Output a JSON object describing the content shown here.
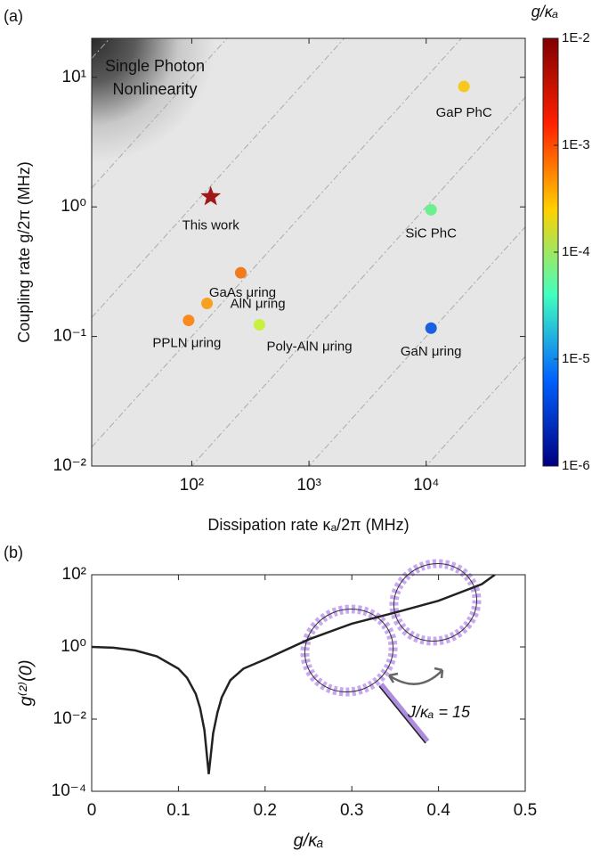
{
  "chart_data": [
    {
      "type": "scatter",
      "panel": "(a)",
      "xlabel": "Dissipation rate κₐ/2π (MHz)",
      "ylabel": "Coupling rate g/2π (MHz)",
      "xscale": "log",
      "yscale": "log",
      "xlim": [
        14,
        70000
      ],
      "ylim": [
        0.01,
        20
      ],
      "xticks": [
        {
          "value": 100,
          "label": "10²"
        },
        {
          "value": 1000,
          "label": "10³"
        },
        {
          "value": 10000,
          "label": "10⁴"
        }
      ],
      "yticks": [
        {
          "value": 0.01,
          "label": "10⁻²"
        },
        {
          "value": 0.1,
          "label": "10⁻¹"
        },
        {
          "value": 1,
          "label": "10⁰"
        },
        {
          "value": 10,
          "label": "10¹"
        }
      ],
      "annotations": [
        "Single Photon",
        "Nonlinearity"
      ],
      "colorbar": {
        "title": "g/κₐ",
        "ticks": [
          "1E-2",
          "1E-3",
          "1E-4",
          "1E-5",
          "1E-6"
        ],
        "colors": [
          "#800000",
          "#ff2000",
          "#ffd000",
          "#40ffc0",
          "#0060ff",
          "#000080"
        ]
      },
      "series": [
        {
          "name": "This work",
          "color": "#a01818",
          "marker": "star",
          "x": [
            145
          ],
          "values": [
            1.2
          ]
        },
        {
          "name": "GaP PhC",
          "color": "#f8c81c",
          "marker": "circle",
          "x": [
            21000
          ],
          "values": [
            8.5
          ]
        },
        {
          "name": "SiC PhC",
          "color": "#6af08c",
          "marker": "circle",
          "x": [
            11000
          ],
          "values": [
            0.95
          ]
        },
        {
          "name": "GaAs μring",
          "color": "#f07a1c",
          "marker": "circle",
          "x": [
            262
          ],
          "values": [
            0.31
          ]
        },
        {
          "name": "AlN μring",
          "color": "#f8a020",
          "marker": "circle",
          "x": [
            135
          ],
          "values": [
            0.18
          ]
        },
        {
          "name": "PPLN μring",
          "color": "#f88a20",
          "marker": "circle",
          "x": [
            94
          ],
          "values": [
            0.133
          ]
        },
        {
          "name": "Poly-AlN μring",
          "color": "#c8f040",
          "marker": "circle",
          "x": [
            378
          ],
          "values": [
            0.123
          ]
        },
        {
          "name": "GaN μring",
          "color": "#1a60e0",
          "marker": "circle",
          "x": [
            11000
          ],
          "values": [
            0.116
          ]
        }
      ]
    },
    {
      "type": "line",
      "panel": "(b)",
      "xlabel": "g/κₐ",
      "ylabel": "g⁽²⁾(0)",
      "yscale": "log",
      "xlim": [
        0,
        0.5
      ],
      "ylim": [
        0.0001,
        100
      ],
      "xticks": [
        0,
        0.1,
        0.2,
        0.3,
        0.4,
        0.5
      ],
      "yticks": [
        {
          "value": 0.0001,
          "label": "10⁻⁴"
        },
        {
          "value": 0.01,
          "label": "10⁻²"
        },
        {
          "value": 1,
          "label": "10⁰"
        },
        {
          "value": 100,
          "label": "10²"
        }
      ],
      "annotation": "J/κₐ = 15",
      "series": [
        {
          "color": "#222222",
          "x": [
            0,
            0.025,
            0.05,
            0.075,
            0.1,
            0.11,
            0.12,
            0.125,
            0.13,
            0.135,
            0.14,
            0.145,
            0.15,
            0.16,
            0.175,
            0.2,
            0.25,
            0.3,
            0.35,
            0.4,
            0.45,
            0.465
          ],
          "values": [
            1,
            0.95,
            0.8,
            0.55,
            0.25,
            0.14,
            0.05,
            0.02,
            0.005,
            0.0003,
            0.004,
            0.015,
            0.04,
            0.12,
            0.25,
            0.45,
            1.6,
            4.4,
            9,
            19,
            55,
            100
          ]
        }
      ]
    }
  ]
}
